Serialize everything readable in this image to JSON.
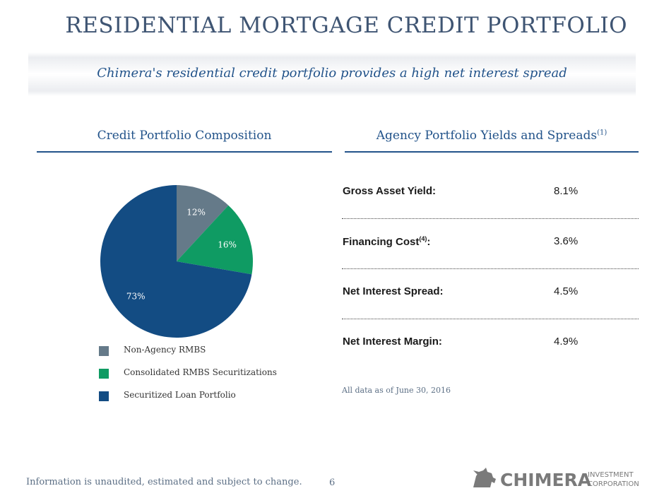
{
  "header": {
    "title": "RESIDENTIAL MORTGAGE CREDIT PORTFOLIO",
    "subtitle": "Chimera's residential credit portfolio provides a high net interest spread"
  },
  "left_section": {
    "heading": "Credit Portfolio Composition"
  },
  "right_section": {
    "heading": "Agency Portfolio Yields and Spreads",
    "heading_note": "(1)"
  },
  "chart_data": {
    "type": "pie",
    "title": "",
    "categories": [
      "Non-Agency RMBS",
      "Consolidated RMBS Securitizations",
      "Securitized Loan Portfolio"
    ],
    "values": [
      12,
      16,
      73
    ],
    "labels": [
      "12%",
      "16%",
      "73%"
    ],
    "colors": [
      "#657a89",
      "#0f9b63",
      "#134c83"
    ],
    "label_colors": [
      "#ffffff",
      "#ffffff",
      "#ffffff"
    ],
    "legend_placement": "bottom"
  },
  "metrics": [
    {
      "label": "Gross Asset Yield:",
      "note": "",
      "value": "8.1%"
    },
    {
      "label": "Financing Cost",
      "note": "(4)",
      "suffix": ":",
      "value": "3.6%"
    },
    {
      "label": "Net Interest Spread:",
      "note": "",
      "value": "4.5%"
    },
    {
      "label": "Net Interest Margin:",
      "note": "",
      "value": "4.9%"
    }
  ],
  "as_of": "All data as of June 30, 2016",
  "footer": {
    "note": "Information is unaudited, estimated and subject to change.",
    "page": "6"
  },
  "logo": {
    "brand": "CHIMERA",
    "line1": "INVESTMENT",
    "line2": "CORPORATION",
    "color": "#7a7a7a"
  }
}
